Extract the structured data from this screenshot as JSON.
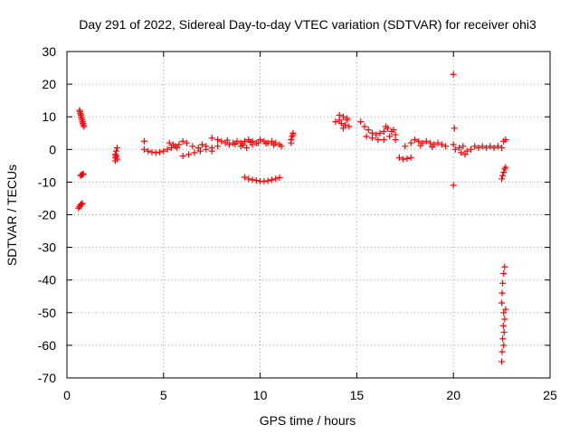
{
  "chart_data": {
    "type": "scatter",
    "title": "Day 291 of 2022, Sidereal Day-to-day VTEC variation (SDTVAR) for receiver ohi3",
    "xlabel": "GPS time / hours",
    "ylabel": "SDTVAR / TECUs",
    "xlim": [
      0,
      25
    ],
    "ylim": [
      -70,
      30
    ],
    "x_ticks": [
      "0",
      "5",
      "10",
      "15",
      "20",
      "25"
    ],
    "y_ticks": [
      "-70",
      "-60",
      "-50",
      "-40",
      "-30",
      "-20",
      "-10",
      "0",
      "10",
      "20",
      "30"
    ],
    "grid": true,
    "marker": "plus",
    "color": "#ff0000",
    "series": [
      {
        "name": "SDTVAR",
        "points": [
          [
            0.65,
            12.0
          ],
          [
            0.68,
            11.5
          ],
          [
            0.7,
            11.0
          ],
          [
            0.72,
            10.5
          ],
          [
            0.74,
            10.0
          ],
          [
            0.76,
            9.5
          ],
          [
            0.78,
            9.0
          ],
          [
            0.8,
            8.5
          ],
          [
            0.82,
            8.0
          ],
          [
            0.85,
            7.5
          ],
          [
            0.88,
            7.0
          ],
          [
            0.7,
            -8.0
          ],
          [
            0.75,
            -7.8
          ],
          [
            0.8,
            -7.6
          ],
          [
            0.85,
            -7.5
          ],
          [
            0.6,
            -18.0
          ],
          [
            0.65,
            -17.5
          ],
          [
            0.7,
            -17.0
          ],
          [
            0.75,
            -16.8
          ],
          [
            0.8,
            -16.5
          ],
          [
            2.5,
            -3.5
          ],
          [
            2.5,
            -2.5
          ],
          [
            2.5,
            -1.5
          ],
          [
            2.55,
            -0.5
          ],
          [
            2.6,
            0.5
          ],
          [
            2.6,
            -3.0
          ],
          [
            2.55,
            -2.0
          ],
          [
            4.0,
            2.5
          ],
          [
            4.0,
            0.0
          ],
          [
            4.2,
            -0.5
          ],
          [
            4.4,
            -0.8
          ],
          [
            4.6,
            -1.0
          ],
          [
            4.8,
            -0.8
          ],
          [
            5.0,
            -0.5
          ],
          [
            5.2,
            0.0
          ],
          [
            5.4,
            0.5
          ],
          [
            5.6,
            1.0
          ],
          [
            5.8,
            1.5
          ],
          [
            5.3,
            2.0
          ],
          [
            5.5,
            1.5
          ],
          [
            5.7,
            0.5
          ],
          [
            6.0,
            2.5
          ],
          [
            6.2,
            2.0
          ],
          [
            6.5,
            1.0
          ],
          [
            6.8,
            0.5
          ],
          [
            7.0,
            1.5
          ],
          [
            7.2,
            1.0
          ],
          [
            7.5,
            0.5
          ],
          [
            7.8,
            1.0
          ],
          [
            6.0,
            -2.0
          ],
          [
            6.3,
            -1.5
          ],
          [
            6.6,
            -1.0
          ],
          [
            6.9,
            -0.5
          ],
          [
            7.2,
            0.0
          ],
          [
            7.5,
            -0.5
          ],
          [
            7.5,
            3.5
          ],
          [
            7.8,
            3.0
          ],
          [
            8.0,
            2.5
          ],
          [
            8.2,
            2.0
          ],
          [
            8.4,
            1.5
          ],
          [
            8.6,
            2.0
          ],
          [
            8.8,
            2.5
          ],
          [
            9.0,
            2.0
          ],
          [
            9.2,
            2.5
          ],
          [
            9.4,
            3.0
          ],
          [
            9.6,
            2.5
          ],
          [
            9.8,
            2.0
          ],
          [
            9.0,
            1.0
          ],
          [
            9.3,
            0.5
          ],
          [
            9.6,
            1.5
          ],
          [
            9.9,
            2.0
          ],
          [
            10.0,
            3.0
          ],
          [
            10.2,
            2.5
          ],
          [
            10.4,
            2.0
          ],
          [
            10.6,
            2.5
          ],
          [
            10.8,
            2.0
          ],
          [
            11.0,
            1.5
          ],
          [
            11.1,
            1.0
          ],
          [
            8.3,
            2.8
          ],
          [
            8.7,
            1.6
          ],
          [
            9.1,
            1.4
          ],
          [
            9.5,
            2.2
          ],
          [
            10.3,
            1.8
          ],
          [
            10.7,
            1.4
          ],
          [
            9.2,
            -8.5
          ],
          [
            9.4,
            -9.0
          ],
          [
            9.6,
            -9.3
          ],
          [
            9.8,
            -9.5
          ],
          [
            10.0,
            -9.7
          ],
          [
            10.2,
            -9.8
          ],
          [
            10.4,
            -9.6
          ],
          [
            10.6,
            -9.3
          ],
          [
            10.8,
            -9.0
          ],
          [
            11.0,
            -8.6
          ],
          [
            11.6,
            3.0
          ],
          [
            11.65,
            4.0
          ],
          [
            11.7,
            5.0
          ],
          [
            11.6,
            2.0
          ],
          [
            11.7,
            4.5
          ],
          [
            13.9,
            8.5
          ],
          [
            14.1,
            9.0
          ],
          [
            14.3,
            10.0
          ],
          [
            14.5,
            9.5
          ],
          [
            14.2,
            8.0
          ],
          [
            14.4,
            7.5
          ],
          [
            14.6,
            7.0
          ],
          [
            14.3,
            6.5
          ],
          [
            14.5,
            9.0
          ],
          [
            14.1,
            10.5
          ],
          [
            15.2,
            8.5
          ],
          [
            15.4,
            7.0
          ],
          [
            15.6,
            6.0
          ],
          [
            15.8,
            5.0
          ],
          [
            16.0,
            4.5
          ],
          [
            16.2,
            5.0
          ],
          [
            16.4,
            5.5
          ],
          [
            16.6,
            6.5
          ],
          [
            16.8,
            5.5
          ],
          [
            17.0,
            4.5
          ],
          [
            15.5,
            4.0
          ],
          [
            15.8,
            3.5
          ],
          [
            16.1,
            3.0
          ],
          [
            16.4,
            3.0
          ],
          [
            16.7,
            4.0
          ],
          [
            17.0,
            3.0
          ],
          [
            16.5,
            7.0
          ],
          [
            16.9,
            6.0
          ],
          [
            17.2,
            -2.5
          ],
          [
            17.4,
            -3.0
          ],
          [
            17.6,
            -2.8
          ],
          [
            17.8,
            -2.5
          ],
          [
            17.5,
            1.0
          ],
          [
            17.8,
            2.0
          ],
          [
            18.0,
            3.0
          ],
          [
            18.2,
            2.5
          ],
          [
            18.4,
            2.0
          ],
          [
            18.6,
            2.5
          ],
          [
            18.8,
            2.0
          ],
          [
            19.0,
            1.5
          ],
          [
            19.2,
            2.0
          ],
          [
            19.4,
            1.5
          ],
          [
            19.6,
            1.0
          ],
          [
            18.3,
            1.2
          ],
          [
            18.9,
            0.8
          ],
          [
            20.0,
            23.0
          ],
          [
            20.05,
            6.5
          ],
          [
            20.0,
            1.5
          ],
          [
            20.0,
            -11.0
          ],
          [
            20.1,
            0.0
          ],
          [
            20.3,
            0.5
          ],
          [
            20.5,
            1.0
          ],
          [
            20.7,
            -0.5
          ],
          [
            20.9,
            0.0
          ],
          [
            21.1,
            1.0
          ],
          [
            21.3,
            0.5
          ],
          [
            21.5,
            1.0
          ],
          [
            21.7,
            0.5
          ],
          [
            21.9,
            1.0
          ],
          [
            22.1,
            0.5
          ],
          [
            20.6,
            -1.5
          ],
          [
            20.4,
            -1.0
          ],
          [
            22.3,
            1.0
          ],
          [
            22.5,
            0.5
          ],
          [
            22.7,
            3.0
          ],
          [
            22.6,
            2.5
          ],
          [
            22.5,
            -9.0
          ],
          [
            22.55,
            -8.0
          ],
          [
            22.6,
            -7.0
          ],
          [
            22.65,
            -6.0
          ],
          [
            22.7,
            -5.5
          ],
          [
            22.5,
            -65.0
          ],
          [
            22.52,
            -62.0
          ],
          [
            22.55,
            -58.0
          ],
          [
            22.58,
            -54.0
          ],
          [
            22.6,
            -50.0
          ],
          [
            22.5,
            -47.0
          ],
          [
            22.52,
            -44.0
          ],
          [
            22.55,
            -41.0
          ],
          [
            22.6,
            -38.0
          ],
          [
            22.65,
            -36.0
          ],
          [
            22.6,
            -60.0
          ],
          [
            22.62,
            -56.0
          ],
          [
            22.65,
            -52.0
          ],
          [
            22.7,
            -49.0
          ]
        ]
      }
    ]
  }
}
